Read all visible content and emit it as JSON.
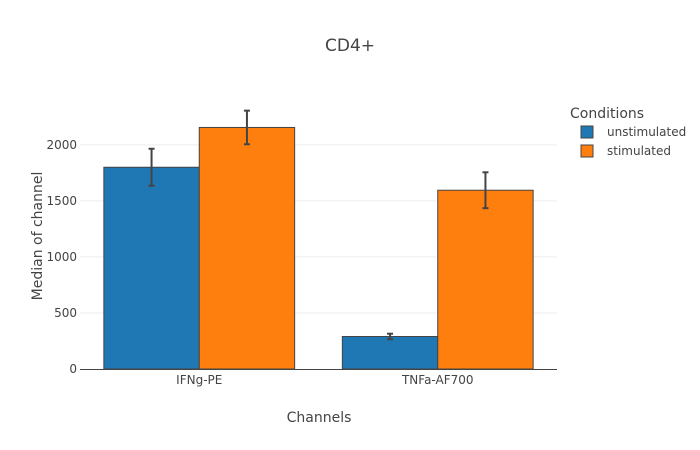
{
  "chart_data": {
    "type": "bar",
    "title": "CD4+",
    "xlabel": "Channels",
    "ylabel": "Median of channel",
    "categories": [
      "IFNg-PE",
      "TNFa-AF700"
    ],
    "ylim": [
      0,
      2400
    ],
    "yticks": [
      0,
      500,
      1000,
      1500,
      2000
    ],
    "grid": true,
    "legend": {
      "title": "Conditions",
      "placement": "top-right"
    },
    "series": [
      {
        "name": "unstimulated",
        "color": "#1f77b4",
        "values": [
          1800,
          290
        ],
        "errors": [
          165,
          25
        ]
      },
      {
        "name": "stimulated",
        "color": "#ff7f0e",
        "values": [
          2155,
          1595
        ],
        "errors": [
          150,
          160
        ]
      }
    ]
  }
}
